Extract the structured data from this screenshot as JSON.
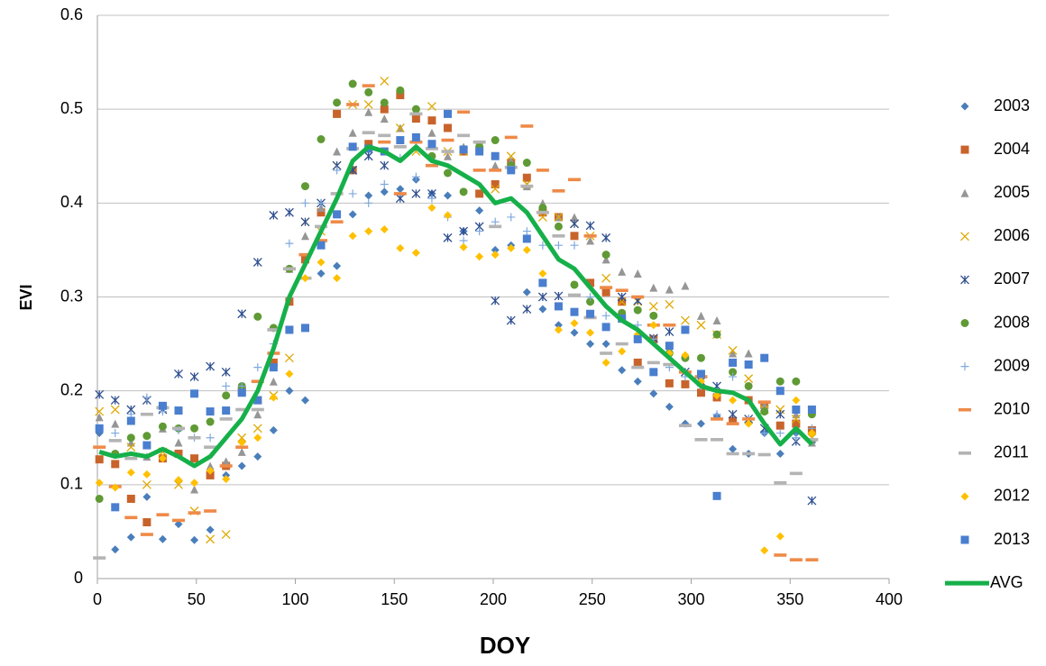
{
  "chart_data": {
    "type": "scatter",
    "x_label": "DOY",
    "y_label": "EVI",
    "xlim": [
      0,
      400
    ],
    "xticks": [
      0,
      50,
      100,
      150,
      200,
      250,
      300,
      350,
      400
    ],
    "ylim": [
      0,
      0.6
    ],
    "yticks": [
      0,
      0.1,
      0.2,
      0.3,
      0.4,
      0.5,
      0.6
    ],
    "grid": true,
    "legend": "right",
    "x": [
      1,
      9,
      17,
      25,
      33,
      41,
      49,
      57,
      65,
      73,
      81,
      89,
      97,
      105,
      113,
      121,
      129,
      137,
      145,
      153,
      161,
      169,
      177,
      185,
      193,
      201,
      209,
      217,
      225,
      233,
      241,
      249,
      257,
      265,
      273,
      281,
      289,
      297,
      305,
      313,
      321,
      329,
      337,
      345,
      353,
      361
    ],
    "series": [
      {
        "name": "2003",
        "color": "#4a7ebb",
        "marker": "diamond",
        "values": [
          0.155,
          0.031,
          0.044,
          0.087,
          0.042,
          0.058,
          0.041,
          0.052,
          0.11,
          0.12,
          0.13,
          0.158,
          0.2,
          0.19,
          0.325,
          0.333,
          0.388,
          0.408,
          0.412,
          0.415,
          0.425,
          0.41,
          0.408,
          0.37,
          0.392,
          0.35,
          0.355,
          0.305,
          0.287,
          0.27,
          0.262,
          0.25,
          0.25,
          0.222,
          0.21,
          0.197,
          0.183,
          0.165,
          0.165,
          0.173,
          0.138,
          0.133,
          0.155,
          0.133,
          0.155,
          0.145
        ]
      },
      {
        "name": "2004",
        "color": "#c8642b",
        "marker": "square",
        "values": [
          0.127,
          0.122,
          0.085,
          0.06,
          0.128,
          0.133,
          0.128,
          0.11,
          0.12,
          0.2,
          0.19,
          0.23,
          0.295,
          0.34,
          0.39,
          0.495,
          0.435,
          0.463,
          0.5,
          0.515,
          0.49,
          0.488,
          0.48,
          0.455,
          0.41,
          0.42,
          0.443,
          0.427,
          0.39,
          0.385,
          0.365,
          0.315,
          0.305,
          0.295,
          0.23,
          0.255,
          0.208,
          0.207,
          0.198,
          0.193,
          0.168,
          0.19,
          0.185,
          0.163,
          0.165,
          0.158
        ]
      },
      {
        "name": "2005",
        "color": "#969696",
        "marker": "triangle",
        "values": [
          0.172,
          0.165,
          0.145,
          0.13,
          0.16,
          0.145,
          0.095,
          0.12,
          0.125,
          0.135,
          0.175,
          0.21,
          0.33,
          0.365,
          0.395,
          0.455,
          0.475,
          0.497,
          0.49,
          0.48,
          0.46,
          0.475,
          0.45,
          0.46,
          0.455,
          0.44,
          0.445,
          0.418,
          0.4,
          0.385,
          0.385,
          0.36,
          0.34,
          0.327,
          0.325,
          0.31,
          0.308,
          0.312,
          0.28,
          0.275,
          0.24,
          0.24,
          0.185,
          0.2,
          0.175,
          0.145
        ]
      },
      {
        "name": "2006",
        "color": "#e0a800",
        "marker": "x",
        "values": [
          0.178,
          0.18,
          0.14,
          0.1,
          0.135,
          0.1,
          0.072,
          0.042,
          0.047,
          0.15,
          0.16,
          0.195,
          0.235,
          0.38,
          0.37,
          0.44,
          0.505,
          0.505,
          0.53,
          0.48,
          0.455,
          0.503,
          0.455,
          0.455,
          0.46,
          0.415,
          0.45,
          0.42,
          0.385,
          0.385,
          0.378,
          0.365,
          0.32,
          0.295,
          0.295,
          0.29,
          0.292,
          0.275,
          0.27,
          0.26,
          0.243,
          0.213,
          0.18,
          0.18,
          0.17,
          0.15
        ]
      },
      {
        "name": "2007",
        "color": "#2f4f8f",
        "marker": "star",
        "values": [
          0.196,
          0.19,
          0.18,
          0.19,
          0.18,
          0.218,
          0.215,
          0.226,
          0.22,
          0.282,
          0.337,
          0.387,
          0.39,
          0.38,
          0.4,
          0.44,
          0.435,
          0.45,
          0.44,
          0.405,
          0.41,
          0.41,
          0.363,
          0.37,
          0.375,
          0.296,
          0.275,
          0.287,
          0.3,
          0.301,
          0.378,
          0.376,
          0.363,
          0.3,
          0.296,
          0.256,
          0.263,
          0.22,
          0.21,
          0.205,
          0.175,
          0.17,
          0.16,
          0.175,
          0.146,
          0.083
        ]
      },
      {
        "name": "2008",
        "color": "#5f9a35",
        "marker": "circle",
        "values": [
          0.085,
          0.133,
          0.15,
          0.152,
          0.162,
          0.16,
          0.16,
          0.167,
          0.195,
          0.205,
          0.279,
          0.267,
          0.33,
          0.418,
          0.468,
          0.507,
          0.527,
          0.518,
          0.507,
          0.52,
          0.5,
          0.45,
          0.432,
          0.412,
          0.46,
          0.467,
          0.44,
          0.443,
          0.395,
          0.375,
          0.313,
          0.295,
          0.345,
          0.283,
          0.286,
          0.28,
          0.24,
          0.235,
          0.235,
          0.26,
          0.22,
          0.205,
          0.178,
          0.21,
          0.21,
          0.175
        ]
      },
      {
        "name": "2009",
        "color": "#7fa9dd",
        "marker": "plus",
        "values": [
          0.16,
          0.155,
          0.175,
          0.193,
          0.178,
          0.158,
          0.15,
          0.15,
          0.205,
          0.205,
          0.225,
          0.25,
          0.357,
          0.4,
          0.4,
          0.435,
          0.41,
          0.4,
          0.42,
          0.448,
          0.428,
          0.405,
          0.385,
          0.36,
          0.37,
          0.38,
          0.385,
          0.37,
          0.355,
          0.355,
          0.355,
          0.3,
          0.28,
          0.277,
          0.27,
          0.255,
          0.225,
          0.215,
          0.205,
          0.175,
          0.215,
          0.17,
          0.155,
          0.155,
          0.15,
          0.16
        ]
      },
      {
        "name": "2010",
        "color": "#ee8a48",
        "marker": "dash",
        "values": [
          0.14,
          0.098,
          0.065,
          0.047,
          0.068,
          0.062,
          0.07,
          0.072,
          0.12,
          0.14,
          0.21,
          0.24,
          0.33,
          0.345,
          0.36,
          0.38,
          0.505,
          0.525,
          0.465,
          0.41,
          0.465,
          0.44,
          0.467,
          0.497,
          0.435,
          0.435,
          0.47,
          0.482,
          0.435,
          0.413,
          0.425,
          0.365,
          0.31,
          0.307,
          0.3,
          0.27,
          0.27,
          0.22,
          0.215,
          0.17,
          0.165,
          0.17,
          0.188,
          0.025,
          0.02,
          0.02
        ]
      },
      {
        "name": "2011",
        "color": "#b4b4b4",
        "marker": "dash",
        "values": [
          0.022,
          0.147,
          0.128,
          0.175,
          0.182,
          0.16,
          0.15,
          0.14,
          0.17,
          0.18,
          0.18,
          0.265,
          0.33,
          0.32,
          0.375,
          0.41,
          0.458,
          0.475,
          0.472,
          0.46,
          0.495,
          0.458,
          0.455,
          0.472,
          0.465,
          0.375,
          0.438,
          0.418,
          0.39,
          0.365,
          0.302,
          0.278,
          0.24,
          0.25,
          0.225,
          0.23,
          0.228,
          0.163,
          0.148,
          0.148,
          0.133,
          0.133,
          0.132,
          0.102,
          0.112,
          0.148
        ]
      },
      {
        "name": "2012",
        "color": "#ffc000",
        "marker": "diamond",
        "values": [
          0.102,
          0.097,
          0.113,
          0.111,
          0.128,
          0.105,
          0.102,
          0.115,
          0.106,
          0.145,
          0.15,
          0.193,
          0.218,
          0.32,
          0.337,
          0.32,
          0.365,
          0.37,
          0.372,
          0.352,
          0.347,
          0.395,
          0.387,
          0.353,
          0.343,
          0.345,
          0.352,
          0.35,
          0.325,
          0.265,
          0.272,
          0.262,
          0.23,
          0.242,
          0.26,
          0.27,
          0.24,
          0.238,
          0.21,
          0.195,
          0.19,
          0.165,
          0.03,
          0.045,
          0.19,
          0.155
        ]
      },
      {
        "name": "2013",
        "color": "#4a7ecf",
        "marker": "square",
        "values": [
          0.16,
          0.076,
          0.168,
          0.142,
          0.184,
          0.179,
          0.197,
          0.178,
          0.179,
          0.198,
          0.19,
          0.225,
          0.265,
          0.267,
          0.355,
          0.388,
          0.46,
          0.458,
          0.455,
          0.467,
          0.47,
          0.463,
          0.495,
          0.457,
          0.455,
          0.45,
          0.435,
          0.362,
          0.315,
          0.29,
          0.284,
          0.282,
          0.268,
          0.277,
          0.255,
          0.22,
          0.248,
          0.265,
          0.218,
          0.088,
          0.23,
          0.228,
          0.235,
          0.2,
          0.18,
          0.18
        ]
      },
      {
        "name": "AVG",
        "color": "#16b04a",
        "marker": "line",
        "values": [
          0.135,
          0.13,
          0.133,
          0.13,
          0.138,
          0.13,
          0.12,
          0.13,
          0.15,
          0.17,
          0.2,
          0.245,
          0.3,
          0.335,
          0.37,
          0.405,
          0.445,
          0.46,
          0.455,
          0.445,
          0.46,
          0.445,
          0.44,
          0.43,
          0.42,
          0.4,
          0.405,
          0.39,
          0.365,
          0.34,
          0.33,
          0.31,
          0.29,
          0.275,
          0.265,
          0.25,
          0.235,
          0.22,
          0.205,
          0.2,
          0.198,
          0.19,
          0.165,
          0.143,
          0.16,
          0.143
        ]
      }
    ]
  }
}
